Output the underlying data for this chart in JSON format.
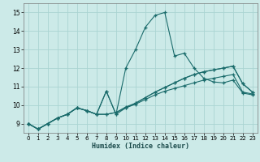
{
  "xlabel": "Humidex (Indice chaleur)",
  "bg_color": "#cceae8",
  "grid_color": "#aad4d2",
  "line_color": "#1a6b6b",
  "xlim": [
    -0.5,
    23.5
  ],
  "ylim": [
    8.5,
    15.5
  ],
  "xticks": [
    0,
    1,
    2,
    3,
    4,
    5,
    6,
    7,
    8,
    9,
    10,
    11,
    12,
    13,
    14,
    15,
    16,
    17,
    18,
    19,
    20,
    21,
    22,
    23
  ],
  "yticks": [
    9,
    10,
    11,
    12,
    13,
    14,
    15
  ],
  "lines": [
    {
      "x": [
        0,
        1,
        2,
        3,
        4,
        5,
        6,
        7,
        8,
        9,
        10,
        11,
        12,
        13,
        14,
        15,
        16,
        17,
        18,
        19,
        20,
        21,
        22,
        23
      ],
      "y": [
        9.0,
        8.7,
        9.0,
        9.3,
        9.5,
        9.85,
        9.7,
        9.5,
        9.5,
        9.6,
        9.85,
        10.05,
        10.3,
        10.55,
        10.75,
        10.9,
        11.05,
        11.2,
        11.35,
        11.45,
        11.55,
        11.65,
        10.7,
        10.6
      ]
    },
    {
      "x": [
        0,
        1,
        2,
        3,
        4,
        5,
        6,
        7,
        8,
        9,
        10,
        11,
        12,
        13,
        14,
        15,
        16,
        17,
        18,
        19,
        20,
        21,
        22,
        23
      ],
      "y": [
        9.0,
        8.7,
        9.0,
        9.3,
        9.5,
        9.85,
        9.7,
        9.5,
        9.5,
        9.6,
        9.9,
        10.1,
        10.4,
        10.7,
        10.95,
        11.2,
        11.45,
        11.65,
        11.8,
        11.9,
        12.0,
        12.1,
        11.15,
        10.7
      ]
    },
    {
      "x": [
        0,
        1,
        2,
        3,
        4,
        5,
        6,
        7,
        8,
        9,
        10,
        11,
        12,
        13,
        14,
        15,
        16,
        17,
        18,
        19,
        20,
        21,
        22,
        23
      ],
      "y": [
        9.0,
        8.7,
        9.0,
        9.3,
        9.5,
        9.85,
        9.7,
        9.5,
        10.75,
        9.5,
        9.85,
        10.1,
        10.4,
        10.7,
        10.95,
        11.2,
        11.45,
        11.65,
        11.8,
        11.9,
        12.0,
        12.1,
        11.15,
        10.7
      ]
    },
    {
      "x": [
        0,
        1,
        2,
        3,
        4,
        5,
        6,
        7,
        8,
        9,
        10,
        11,
        12,
        13,
        14,
        15,
        16,
        17,
        18,
        19,
        20,
        21,
        22,
        23
      ],
      "y": [
        9.0,
        8.7,
        9.0,
        9.3,
        9.5,
        9.85,
        9.7,
        9.5,
        10.75,
        9.5,
        12.0,
        13.0,
        14.2,
        14.85,
        15.0,
        12.65,
        12.8,
        12.0,
        11.45,
        11.25,
        11.2,
        11.35,
        10.65,
        10.55
      ]
    }
  ]
}
